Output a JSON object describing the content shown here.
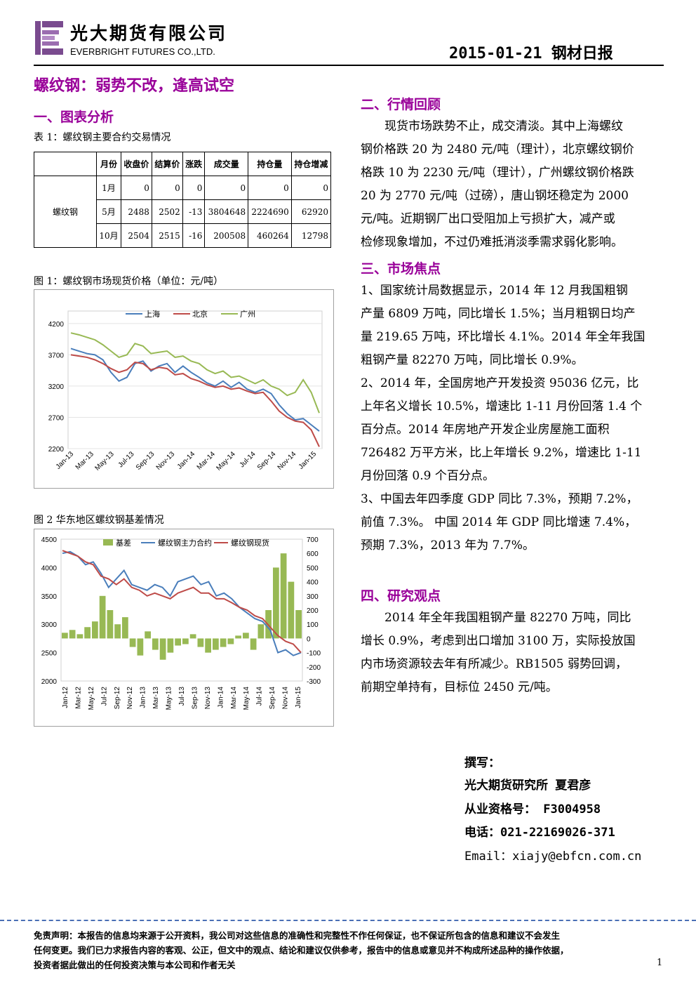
{
  "header": {
    "company_cn": "光大期货有限公司",
    "company_en": "EVERBRIGHT FUTURES CO.,LTD.",
    "report_title": "2015-01-21 钢材日报"
  },
  "main_title": "螺纹钢：弱势不改，逢高试空",
  "section1": {
    "title": "一、图表分析",
    "table_caption": "表 1：螺纹钢主要合约交易情况",
    "table": {
      "headers": [
        "月份",
        "收盘价",
        "结算价",
        "涨跌",
        "成交量",
        "持仓量",
        "持仓增减"
      ],
      "product": "螺纹钢",
      "rows": [
        [
          "1月",
          "0",
          "0",
          "0",
          "0",
          "0",
          "0"
        ],
        [
          "5月",
          "2488",
          "2502",
          "-13",
          "3804648",
          "2224690",
          "62920"
        ],
        [
          "10月",
          "2504",
          "2515",
          "-16",
          "200508",
          "460264",
          "12798"
        ]
      ]
    },
    "fig1_caption": "图 1：螺纹钢市场现货价格（单位：元/吨）",
    "fig2_caption": "图 2 华东地区螺纹钢基差情况"
  },
  "chart_data": [
    {
      "type": "line",
      "series": [
        {
          "name": "上海",
          "color": "#4a7ebb",
          "values": [
            3800,
            3760,
            3720,
            3700,
            3620,
            3420,
            3280,
            3340,
            3560,
            3600,
            3440,
            3520,
            3560,
            3420,
            3520,
            3420,
            3340,
            3250,
            3200,
            3280,
            3180,
            3260,
            3150,
            3100,
            3150,
            3080,
            2900,
            2760,
            2660,
            2680,
            2580,
            2480
          ]
        },
        {
          "name": "北京",
          "color": "#be4b48",
          "values": [
            3700,
            3680,
            3660,
            3620,
            3560,
            3480,
            3420,
            3460,
            3580,
            3560,
            3460,
            3500,
            3480,
            3380,
            3400,
            3320,
            3280,
            3220,
            3180,
            3200,
            3150,
            3170,
            3120,
            3080,
            3100,
            2960,
            2800,
            2700,
            2640,
            2620,
            2500,
            2230
          ]
        },
        {
          "name": "广州",
          "color": "#98b954",
          "values": [
            4050,
            4020,
            3980,
            3940,
            3860,
            3760,
            3660,
            3700,
            3880,
            3840,
            3720,
            3740,
            3760,
            3660,
            3680,
            3600,
            3560,
            3460,
            3400,
            3440,
            3340,
            3360,
            3300,
            3240,
            3300,
            3200,
            3150,
            3050,
            3100,
            3300,
            3100,
            2770
          ]
        }
      ],
      "x_ticks": [
        "Jan-13",
        "Mar-13",
        "May-13",
        "Jul-13",
        "Sep-13",
        "Nov-13",
        "Jan-14",
        "Mar-14",
        "May-14",
        "Jul-14",
        "Sep-14",
        "Nov-14",
        "Jan-15"
      ],
      "y_ticks": [
        "4200",
        "3700",
        "3200",
        "2700",
        "2200"
      ],
      "ylim": [
        2200,
        4400
      ]
    },
    {
      "type": "line",
      "series": [
        {
          "name": "基差",
          "color": "#98b954",
          "type": "bar",
          "axis": "right",
          "values": [
            40,
            60,
            30,
            80,
            120,
            300,
            200,
            100,
            150,
            -60,
            -120,
            50,
            -80,
            -150,
            -100,
            -50,
            -40,
            30,
            -60,
            -100,
            -80,
            -60,
            -40,
            20,
            40,
            -80,
            100,
            200,
            500,
            600,
            400,
            200
          ]
        },
        {
          "name": "螺纹钢主力合约",
          "color": "#4a7ebb",
          "axis": "left",
          "values": [
            4250,
            4280,
            4200,
            4050,
            4100,
            3900,
            3650,
            3800,
            3950,
            3700,
            3650,
            3600,
            3700,
            3650,
            3500,
            3750,
            3800,
            3850,
            3700,
            3750,
            3500,
            3550,
            3450,
            3300,
            3200,
            3100,
            3050,
            2900,
            2500,
            2550,
            2450,
            2500
          ]
        },
        {
          "name": "螺纹钢现货",
          "color": "#be4b48",
          "axis": "left",
          "values": [
            4300,
            4250,
            4200,
            4100,
            4050,
            3850,
            3800,
            3700,
            3800,
            3650,
            3600,
            3500,
            3550,
            3500,
            3450,
            3550,
            3600,
            3650,
            3550,
            3550,
            3450,
            3450,
            3380,
            3300,
            3250,
            3150,
            3100,
            2950,
            2800,
            2700,
            2650,
            2500
          ]
        }
      ],
      "x_ticks": [
        "Jan-12",
        "Mar-12",
        "May-12",
        "Jul-12",
        "Sep-12",
        "Nov-12",
        "Jan-13",
        "Mar-13",
        "May-13",
        "Jul-13",
        "Sep-13",
        "Nov-13",
        "Jan-14",
        "Mar-14",
        "May-14",
        "Jul-14",
        "Sep-14",
        "Nov-14",
        "Jan-15"
      ],
      "y_ticks_left": [
        "4500",
        "4000",
        "3500",
        "3000",
        "2500",
        "2000"
      ],
      "y_ticks_right": [
        "700",
        "600",
        "500",
        "400",
        "300",
        "200",
        "100",
        "0",
        "-100",
        "-200",
        "-300"
      ],
      "ylim_left": [
        2000,
        4500
      ],
      "ylim_right": [
        -300,
        700
      ]
    }
  ],
  "section2": {
    "title": "二、行情回顾",
    "lines": [
      "现货市场跌势不止，成交清淡。其中上海螺纹",
      "钢价格跌 20 为 2480 元/吨（理计），北京螺纹钢价",
      "格跌 10 为 2230 元/吨（理计），广州螺纹钢价格跌",
      "20 为 2770 元/吨（过磅），唐山钢坯稳定为 2000",
      "元/吨。近期钢厂出口受阻加上亏损扩大，减产或",
      "检修现象增加，不过仍难抵消淡季需求弱化影响。"
    ]
  },
  "section3": {
    "title": "三、市场焦点",
    "lines": [
      "1、国家统计局数据显示，2014 年 12 月我国粗钢",
      "产量 6809 万吨，同比增长 1.5%；当月粗钢日均产",
      "量 219.65 万吨，环比增长 4.1%。2014 年全年我国",
      "粗钢产量 82270 万吨，同比增长 0.9%。",
      "2、2014 年，全国房地产开发投资 95036 亿元，比",
      "上年名义增长 10.5%，增速比 1-11 月份回落 1.4 个",
      "百分点。2014 年房地产开发企业房屋施工面积",
      "726482 万平方米，比上年增长 9.2%，增速比 1-11",
      "月份回落 0.9 个百分点。",
      "3、中国去年四季度 GDP 同比 7.3%，预期 7.2%，",
      "前值 7.3%。 中国 2014 年 GDP 同比增速 7.4%，",
      "预期 7.3%，2013 年为 7.7%。"
    ]
  },
  "section4": {
    "title": "四、研究观点",
    "lines": [
      "2014 年全年我国粗钢产量 82270 万吨，同比",
      "增长 0.9%，考虑到出口增加 3100 万，实际投放国",
      "内市场资源较去年有所减少。RB1505 弱势回调，",
      "前期空单持有，目标位 2450 元/吨。"
    ]
  },
  "author": {
    "label": "撰写：",
    "name": "光大期货研究所  夏君彦",
    "license": "从业资格号： F3004958",
    "phone": "电话：021-22169026-371",
    "email": "Email：xiajy@ebfcn.com.cn"
  },
  "footer": {
    "disclaimer_lines": [
      "免责声明：本报告的信息均来源于公开资料，我公司对这些信息的准确性和完整性不作任何保证，也不保证所包含的信息和建议不会发生",
      "任何变更。我们已力求报告内容的客观、公正，但文中的观点、结论和建议仅供参考，报告中的信息或意见并不构成所述品种的操作依据，",
      "投资者据此做出的任何投资决策与本公司和作者无关"
    ],
    "page_number": "1"
  }
}
